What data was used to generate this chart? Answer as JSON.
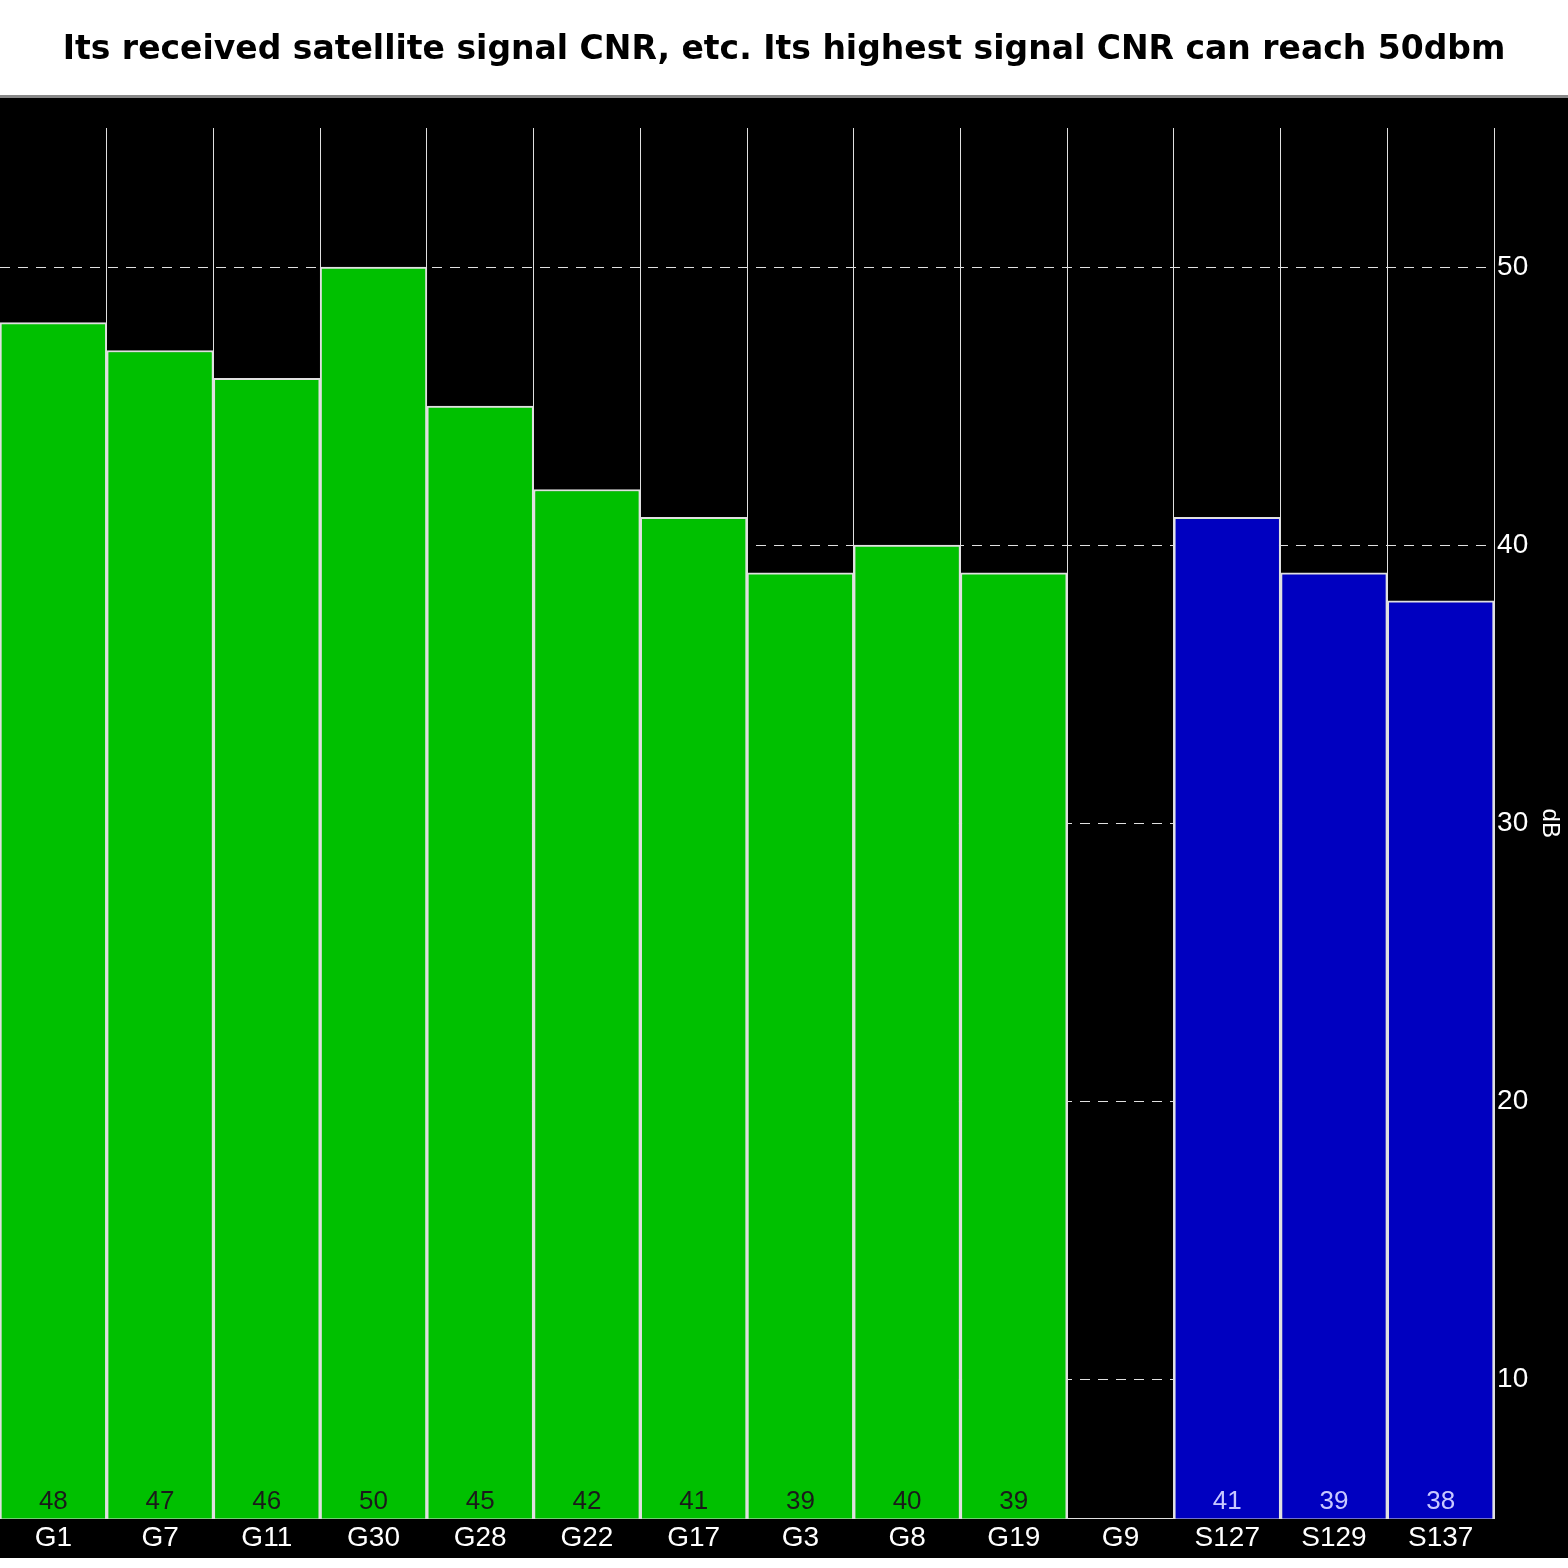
{
  "chart_data": {
    "type": "bar",
    "title": "Its received satellite signal CNR, etc. Its highest signal CNR can reach 50dbm",
    "ylabel": "dB",
    "categories": [
      "G1",
      "G7",
      "G11",
      "G30",
      "G28",
      "G22",
      "G17",
      "G3",
      "G8",
      "G19",
      "G9",
      "S127",
      "S129",
      "S137"
    ],
    "values": [
      48,
      47,
      46,
      50,
      45,
      42,
      41,
      39,
      40,
      39,
      null,
      41,
      39,
      38
    ],
    "colors": [
      "#00c000",
      "#00c000",
      "#00c000",
      "#00c000",
      "#00c000",
      "#00c000",
      "#00c000",
      "#00c000",
      "#00c000",
      "#00c000",
      "#00c000",
      "#0000c0",
      "#0000c0",
      "#0000c0"
    ],
    "ylim": [
      5,
      55
    ],
    "yticks": [
      10,
      20,
      30,
      40,
      50
    ],
    "grid": true,
    "data_labels": true
  }
}
